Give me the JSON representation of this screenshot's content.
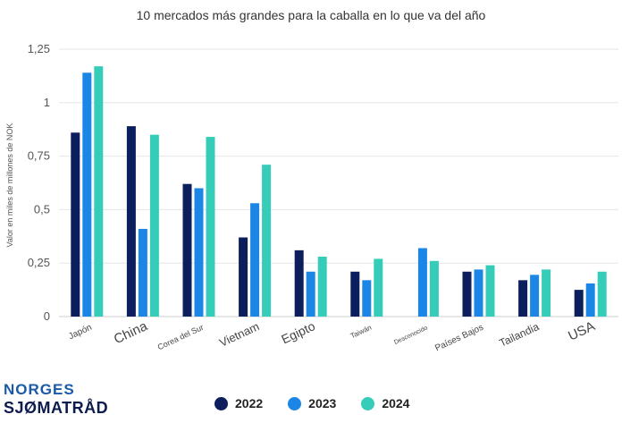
{
  "chart_data": {
    "type": "bar",
    "title": "10 mercados más grandes para la caballa en lo que va del año",
    "ylabel": "Valor en miles de millones de NOK",
    "xlabel": "",
    "ylim": [
      0,
      1.25
    ],
    "yticks": [
      "0",
      "0,25",
      "0,5",
      "0,75",
      "1",
      "1,25"
    ],
    "ytick_values": [
      0,
      0.25,
      0.5,
      0.75,
      1,
      1.25
    ],
    "grid": true,
    "legend_position": "bottom",
    "categories": [
      "Japón",
      "China",
      "Corea del Sur",
      "Vietnam",
      "Egipto",
      "Taiwán",
      "Desconocido",
      "Países Bajos",
      "Tailandia",
      "USA"
    ],
    "series": [
      {
        "name": "2022",
        "color": "#0c1f5c",
        "values": [
          0.86,
          0.89,
          0.62,
          0.37,
          0.31,
          0.21,
          null,
          0.21,
          0.17,
          0.125
        ]
      },
      {
        "name": "2023",
        "color": "#1c86e6",
        "values": [
          1.14,
          0.41,
          0.6,
          0.53,
          0.21,
          0.17,
          0.32,
          0.22,
          0.195,
          0.155
        ]
      },
      {
        "name": "2024",
        "color": "#35ccb9",
        "values": [
          1.17,
          0.85,
          0.84,
          0.71,
          0.28,
          0.27,
          0.26,
          0.24,
          0.22,
          0.21
        ]
      }
    ]
  },
  "logo": {
    "line1": "NORGES",
    "line2": "SJØMATRÅD"
  }
}
